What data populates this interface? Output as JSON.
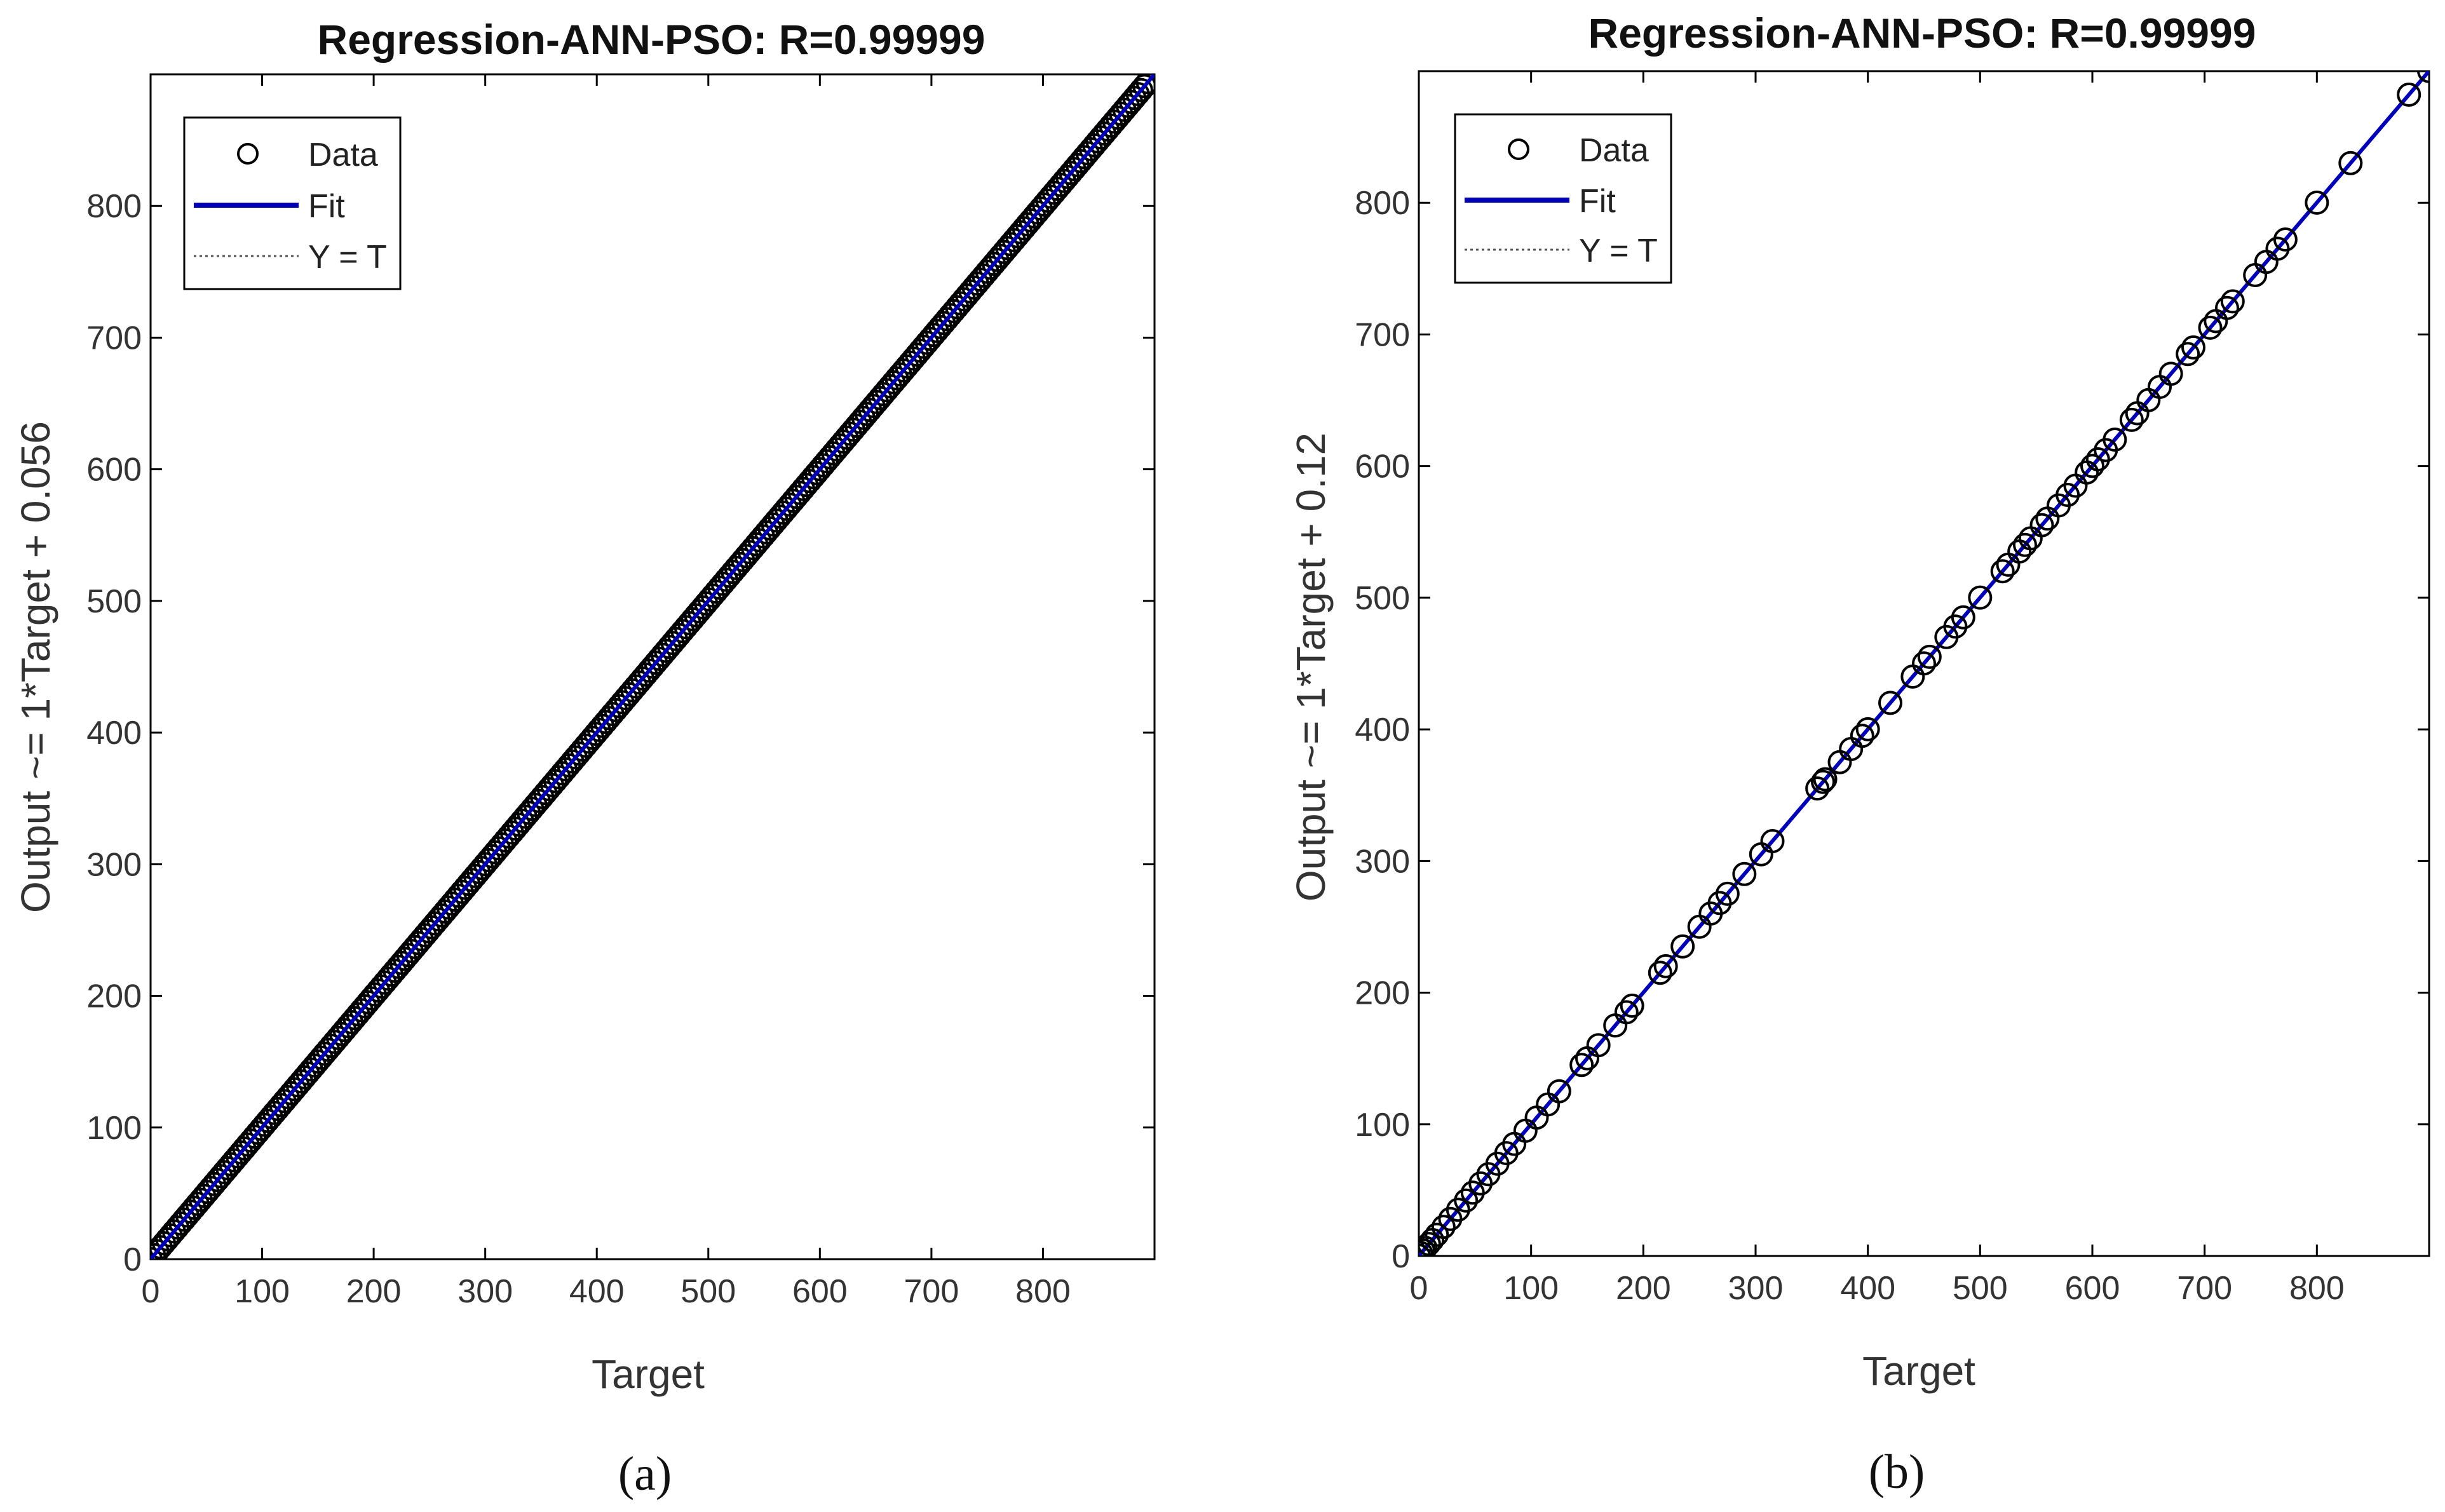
{
  "figure": {
    "captions": [
      "(a)",
      "(b)"
    ]
  },
  "chart_data": [
    {
      "type": "scatter",
      "title": "Regression-ANN-PSO: R=0.99999",
      "xlabel": "Target",
      "ylabel": "Output ~= 1*Target + 0.056",
      "xlim": [
        0,
        900
      ],
      "ylim": [
        0,
        900
      ],
      "xticks": [
        0,
        100,
        200,
        300,
        400,
        500,
        600,
        700,
        800
      ],
      "yticks": [
        0,
        100,
        200,
        300,
        400,
        500,
        600,
        700,
        800
      ],
      "fit": {
        "slope": 1,
        "intercept": 0.056,
        "color": "#0000b4"
      },
      "legend": {
        "position": "top-left",
        "entries": [
          "Data",
          "Fit",
          "Y = T"
        ]
      },
      "data": {
        "x_start": 0,
        "x_end": 895,
        "step": 3,
        "marker": "circle",
        "note": "dense points along Y = T"
      },
      "caption": "(a)"
    },
    {
      "type": "scatter",
      "title": "Regression-ANN-PSO: R=0.99999",
      "xlabel": "Target",
      "ylabel": "Output ~= 1*Target + 0.12",
      "xlim": [
        0,
        900
      ],
      "ylim": [
        0,
        900
      ],
      "xticks": [
        0,
        100,
        200,
        300,
        400,
        500,
        600,
        700,
        800
      ],
      "yticks": [
        0,
        100,
        200,
        300,
        400,
        500,
        600,
        700,
        800
      ],
      "fit": {
        "slope": 1,
        "intercept": 0.12,
        "color": "#0000b4"
      },
      "legend": {
        "position": "top-left",
        "entries": [
          "Data",
          "Fit",
          "Y = T"
        ]
      },
      "data": {
        "points": [
          0,
          2,
          4,
          6,
          9,
          12,
          16,
          22,
          28,
          35,
          42,
          48,
          55,
          62,
          70,
          78,
          85,
          95,
          105,
          115,
          125,
          145,
          150,
          160,
          175,
          185,
          190,
          215,
          220,
          235,
          250,
          260,
          268,
          275,
          290,
          305,
          315,
          355,
          360,
          362,
          375,
          385,
          395,
          400,
          420,
          440,
          450,
          455,
          470,
          478,
          485,
          500,
          520,
          525,
          535,
          540,
          545,
          555,
          560,
          570,
          578,
          585,
          595,
          600,
          605,
          612,
          620,
          635,
          640,
          650,
          660,
          670,
          685,
          690,
          705,
          710,
          720,
          725,
          745,
          755,
          765,
          772,
          800,
          830,
          882,
          900
        ],
        "marker": "circle"
      },
      "caption": "(b)"
    }
  ]
}
